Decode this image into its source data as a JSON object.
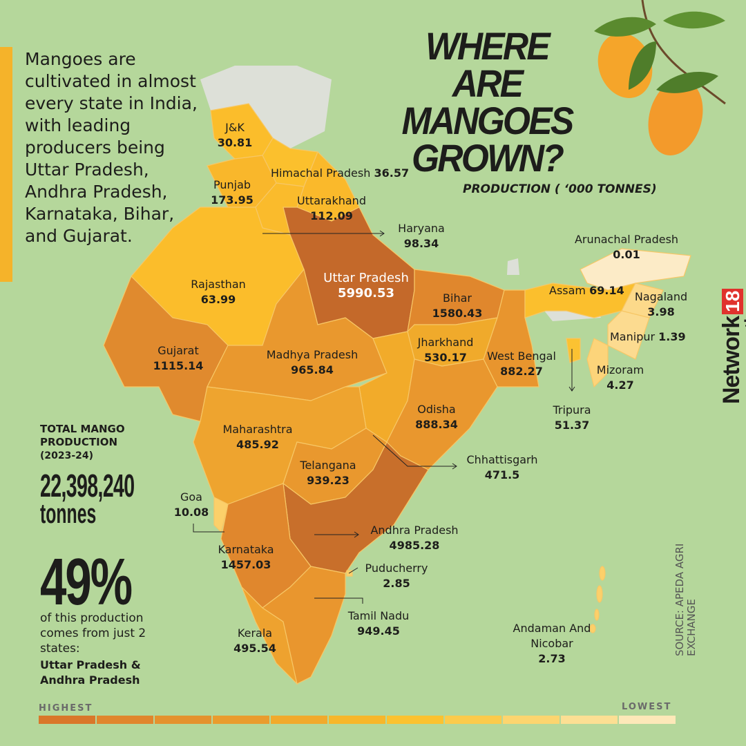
{
  "title": [
    "WHERE",
    "ARE MANGOES",
    "GROWN?"
  ],
  "intro": "Mangoes are cultivated in almost every state in India, with leading producers being Uttar Pradesh, Andhra Pradesh, Karnataka, Bihar, and Gujarat.",
  "unit_label": "PRODUCTION ( ‘000 TONNES)",
  "states": [
    {
      "name": "J&K",
      "value": 30.81,
      "color": "#fbbd2b"
    },
    {
      "name": "Himachal Pradesh",
      "value": 36.57,
      "color": "#fbc02d"
    },
    {
      "name": "Punjab",
      "value": 173.95,
      "color": "#f9b72b"
    },
    {
      "name": "Uttarakhand",
      "value": 112.09,
      "color": "#fab92b"
    },
    {
      "name": "Haryana",
      "value": 98.34,
      "color": "#fabb2c"
    },
    {
      "name": "Uttar Pradesh",
      "value": 5990.53,
      "color": "#c4692a"
    },
    {
      "name": "Rajasthan",
      "value": 63.99,
      "color": "#fbbd2b"
    },
    {
      "name": "Bihar",
      "value": 1580.43,
      "color": "#e0872d"
    },
    {
      "name": "Arunachal Pradesh",
      "value": 0.01,
      "color": "#fcebc7"
    },
    {
      "name": "Assam",
      "value": 69.14,
      "color": "#fbbf2d"
    },
    {
      "name": "Nagaland",
      "value": 3.98,
      "color": "#fcd98a"
    },
    {
      "name": "Manipur",
      "value": 1.39,
      "color": "#fcdb90"
    },
    {
      "name": "Gujarat",
      "value": 1115.14,
      "color": "#e08a2e"
    },
    {
      "name": "Madhya Pradesh",
      "value": 965.84,
      "color": "#e9982e"
    },
    {
      "name": "Jharkhand",
      "value": 530.17,
      "color": "#f0aa2b"
    },
    {
      "name": "West Bengal",
      "value": 882.27,
      "color": "#e8952e"
    },
    {
      "name": "Mizoram",
      "value": 4.27,
      "color": "#fcd47a"
    },
    {
      "name": "Tripura",
      "value": 51.37,
      "color": "#fbc232"
    },
    {
      "name": "Odisha",
      "value": 888.34,
      "color": "#e9972e"
    },
    {
      "name": "Maharashtra",
      "value": 485.92,
      "color": "#eea42f"
    },
    {
      "name": "Chhattisgarh",
      "value": 471.5,
      "color": "#f2ab2a"
    },
    {
      "name": "Telangana",
      "value": 939.23,
      "color": "#e9982e"
    },
    {
      "name": "Goa",
      "value": 10.08,
      "color": "#fcd06a"
    },
    {
      "name": "Andhra Pradesh",
      "value": 4985.28,
      "color": "#c86f2b"
    },
    {
      "name": "Karnataka",
      "value": 1457.03,
      "color": "#e0872d"
    },
    {
      "name": "Puducherry",
      "value": 2.85,
      "color": "#fcd06a"
    },
    {
      "name": "Tamil Nadu",
      "value": 949.45,
      "color": "#e9962e"
    },
    {
      "name": "Kerala",
      "value": 495.54,
      "color": "#eea22f"
    },
    {
      "name": "Andaman And Nicobar",
      "value": 2.73,
      "color": "#fcd06a"
    }
  ],
  "total": {
    "label": "TOTAL MANGO PRODUCTION",
    "period": "(2023-24)",
    "value": "22,398,240",
    "unit": "tonnes"
  },
  "share": {
    "value": "49%",
    "text": "of this production comes from just 2 states:",
    "states": "Uttar Pradesh & Andhra Pradesh"
  },
  "legend": {
    "high": "HIGHEST",
    "low": "LOWEST",
    "colors": [
      "#d9772a",
      "#e0862d",
      "#e4922e",
      "#e99c2e",
      "#f1aa2c",
      "#f7b72b",
      "#fbc230",
      "#fbcb4c",
      "#fcd56f",
      "#fcdf93",
      "#fde8b8"
    ]
  },
  "brand": {
    "name": "Network",
    "number": "18",
    "sub": "creative"
  },
  "source": "SOURCE: APEDA AGRI EXCHANGE"
}
